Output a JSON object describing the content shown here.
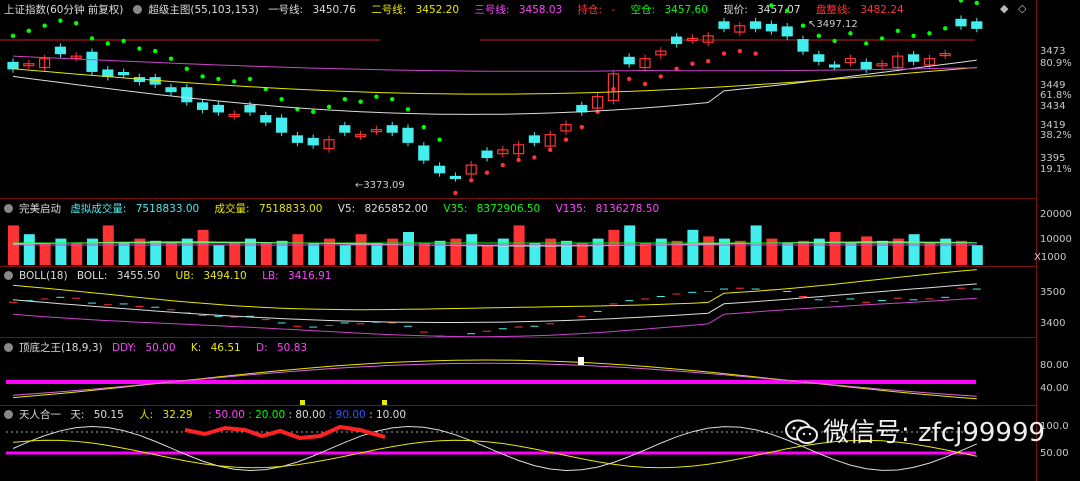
{
  "main": {
    "index_name": "上证指数(60分钟 前复权)",
    "indicator": "超级主图(55,103,153)",
    "line1_label": "一号线:",
    "line1_value": "3450.76",
    "line2_label": "二号线:",
    "line2_value": "3452.20",
    "line3_label": "三号线:",
    "line3_value": "3458.03",
    "hold_label": "持仓:",
    "hold_value": "-",
    "empty_label": "空仓:",
    "empty_value": "3457.60",
    "price_label": "现价:",
    "price_value": "3457.07",
    "consol_label": "盘整线:",
    "consol_value": "3482.24",
    "high_mark": "3497.12",
    "low_mark": "3373.09",
    "axis": [
      "3473",
      "80.9%",
      "3449",
      "61.8%",
      "3434",
      "3419",
      "38.2%",
      "3395",
      "19.1%"
    ]
  },
  "volume": {
    "name": "完美启动",
    "vvol_label": "虚拟成交量:",
    "vvol_value": "7518833.00",
    "vol_label": "成交量:",
    "vol_value": "7518833.00",
    "v5_label": "V5:",
    "v5_value": "8265852.00",
    "v35_label": "V35:",
    "v35_value": "8372906.50",
    "v135_label": "V135:",
    "v135_value": "8136278.50",
    "axis": [
      "20000",
      "10000",
      "X1000"
    ]
  },
  "boll": {
    "name": "BOLL(18)",
    "boll_label": "BOLL:",
    "boll_value": "3455.50",
    "ub_label": "UB:",
    "ub_value": "3494.10",
    "lb_label": "LB:",
    "lb_value": "3416.91",
    "axis": [
      "3500",
      "3400"
    ]
  },
  "kdj": {
    "name": "顶底之王(18,9,3)",
    "ddy_label": "DDY:",
    "ddy_value": "50.00",
    "k_label": "K:",
    "k_value": "46.51",
    "d_label": "D:",
    "d_value": "50.83",
    "axis": [
      "80.00",
      "40.00"
    ]
  },
  "tr": {
    "name": "天人合一",
    "tian_label": "天:",
    "tian_value": "50.15",
    "ren_label": "人:",
    "ren_value": "32.29",
    "v1": ": 50.00",
    "v2": ": 20.00",
    "v3": ": 80.00",
    "v4": ": 90.00",
    "v5": ": 10.00",
    "axis": [
      "100.0",
      "50.00"
    ]
  },
  "watermark": "微信号: zfcj99999",
  "colors": {
    "up": "#ff3333",
    "down": "#44eeee",
    "magenta": "#ff00ff",
    "yellow": "#e8e800",
    "green": "#00ff00"
  }
}
